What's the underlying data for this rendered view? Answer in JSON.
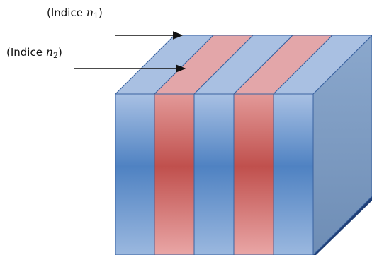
{
  "labels": {
    "n1": {
      "prefix": "(Indice ",
      "symbol": "n",
      "subscript": "1",
      "suffix": ")"
    },
    "n2": {
      "prefix": "(Indice ",
      "symbol": "n",
      "subscript": "2",
      "suffix": ")"
    }
  },
  "layers": [
    "n1",
    "n2",
    "n1",
    "n2",
    "n1"
  ],
  "colors": {
    "n1_front_top": "#a9c1e4",
    "n1_front_mid": "#4f82c2",
    "n1_front_bottom": "#9bb8df",
    "n1_top": "#a9c0e2",
    "n2_front_top": "#e39a99",
    "n2_front_mid": "#c0504d",
    "n2_front_bottom": "#e9a6a6",
    "n2_top": "#e3a6a9",
    "side_top": "#8ba8cd",
    "side_bottom": "#6e8db5",
    "edge": "#3a62a0",
    "shadow": "#1f3e75",
    "arrow": "#111111"
  }
}
